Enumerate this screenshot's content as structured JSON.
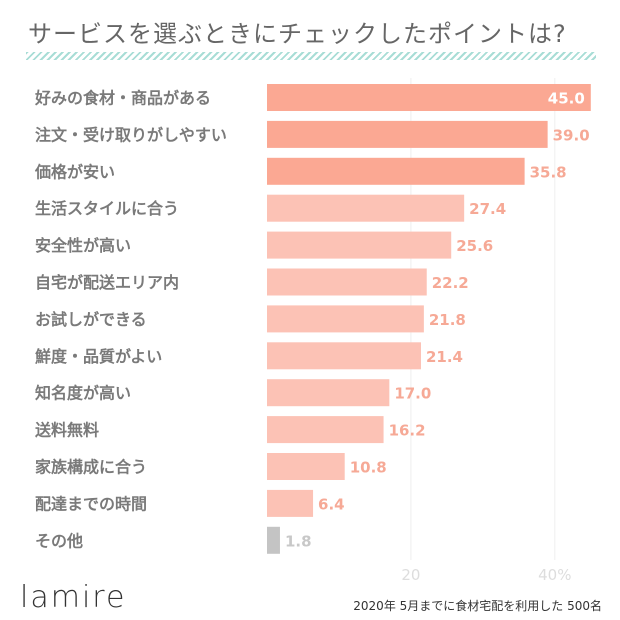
{
  "title": "サービスを選ぶときにチェックしたポイントは?",
  "logo": "lamire",
  "footnote": "2020年 5月までに食材宅配を利用した 500名",
  "colors": {
    "top": "#fba893",
    "mid": "#fcc2b5",
    "other": "#c4c4c4",
    "label_on_bar": "#ffffff",
    "label_outside": "#f6a996",
    "label_other": "#c8c8c8"
  },
  "chart_data": {
    "type": "bar",
    "orientation": "horizontal",
    "categories": [
      "好みの食材・商品がある",
      "注文・受け取りがしやすい",
      "価格が安い",
      "生活スタイルに合う",
      "安全性が高い",
      "自宅が配送エリア内",
      "お試しができる",
      "鮮度・品質がよい",
      "知名度が高い",
      "送料無料",
      "家族構成に合う",
      "配達までの時間",
      "その他"
    ],
    "values": [
      45.0,
      39.0,
      35.8,
      27.4,
      25.6,
      22.2,
      21.8,
      21.4,
      17.0,
      16.2,
      10.8,
      6.4,
      1.8
    ],
    "value_labels": [
      "45.0",
      "39.0",
      "35.8",
      "27.4",
      "25.6",
      "22.2",
      "21.8",
      "21.4",
      "17.0",
      "16.2",
      "10.8",
      "6.4",
      "1.8"
    ],
    "xticks": [
      {
        "value": 20,
        "label": "20"
      },
      {
        "value": 40,
        "label": "40%"
      }
    ],
    "xlim": [
      0,
      46
    ],
    "grid": true
  }
}
